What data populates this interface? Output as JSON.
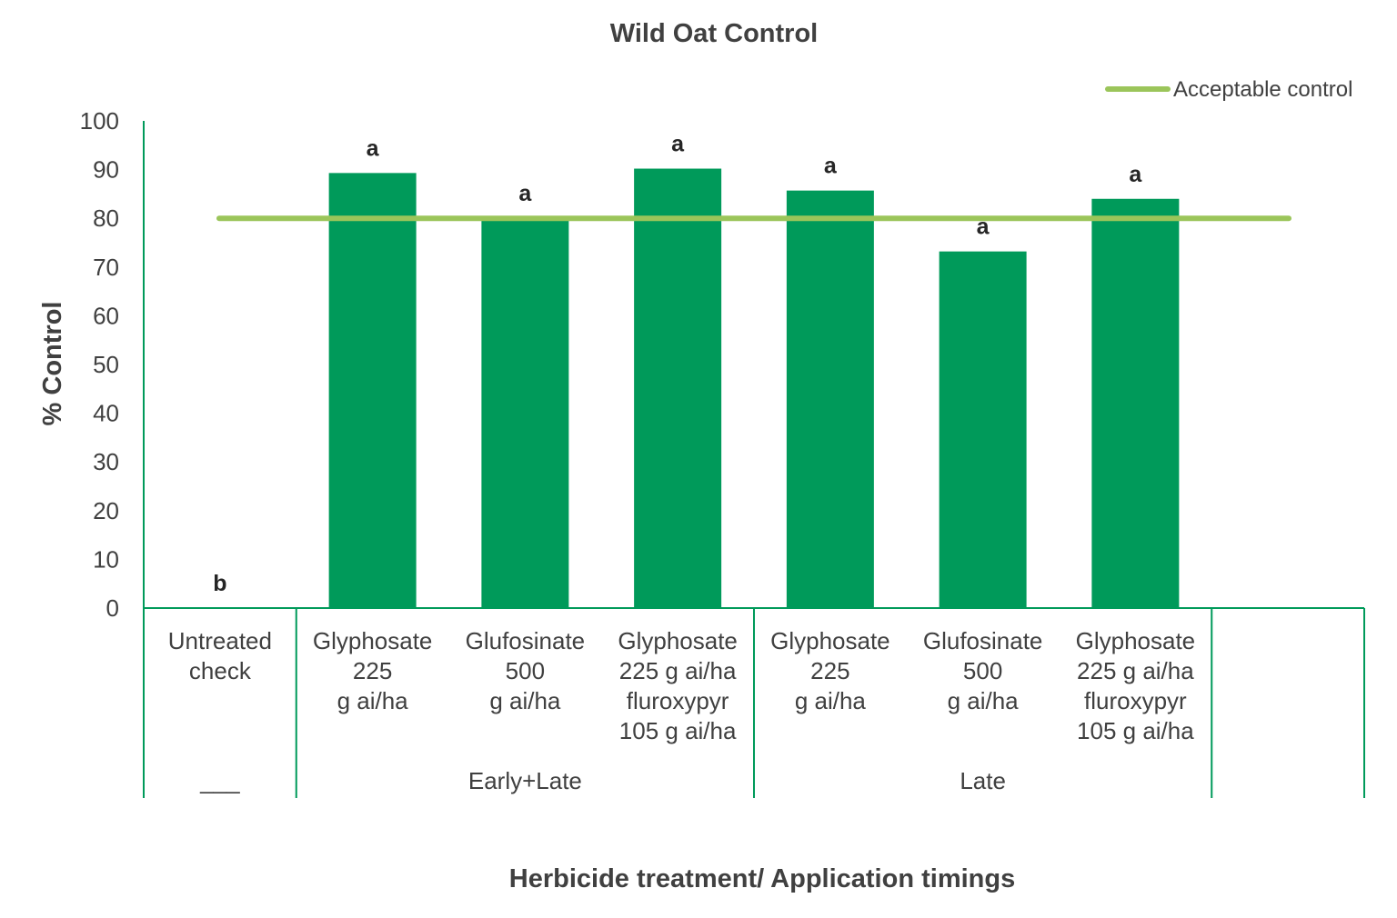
{
  "chart_data": {
    "type": "bar",
    "title": "Wild Oat Control",
    "xlabel": "Herbicide treatment/ Application timings",
    "ylabel": "% Control",
    "ylim": [
      0,
      100
    ],
    "yticks": [
      0,
      10,
      20,
      30,
      40,
      50,
      60,
      70,
      80,
      90,
      100
    ],
    "categories": [
      [
        "Untreated",
        "check"
      ],
      [
        "Glyphosate",
        "225",
        "g ai/ha"
      ],
      [
        "Glufosinate",
        "500",
        "g ai/ha"
      ],
      [
        "Glyphosate",
        "225 g ai/ha",
        "fluroxypyr",
        "105 g ai/ha"
      ],
      [
        "Glyphosate",
        "225",
        "g ai/ha"
      ],
      [
        "Glufosinate",
        "500",
        "g ai/ha"
      ],
      [
        "Glyphosate",
        "225 g ai/ha",
        "fluroxypyr",
        "105 g ai/ha"
      ]
    ],
    "values": [
      0,
      89.3,
      80.0,
      90.2,
      85.7,
      73.2,
      84.0
    ],
    "significance": [
      "b",
      "a",
      "a",
      "a",
      "a",
      "a",
      "a"
    ],
    "groups": [
      {
        "label": "___",
        "start": 0,
        "end": 0
      },
      {
        "label": "Early+Late",
        "start": 1,
        "end": 3
      },
      {
        "label": "Late",
        "start": 4,
        "end": 6
      }
    ],
    "reference_line": {
      "name": "Acceptable control",
      "value": 80
    },
    "legend_position": "top-right",
    "grid": false,
    "colors": {
      "bar": "#009a5a",
      "reference": "#9bc55a",
      "axis": "#009a5a",
      "text": "#404040"
    }
  }
}
